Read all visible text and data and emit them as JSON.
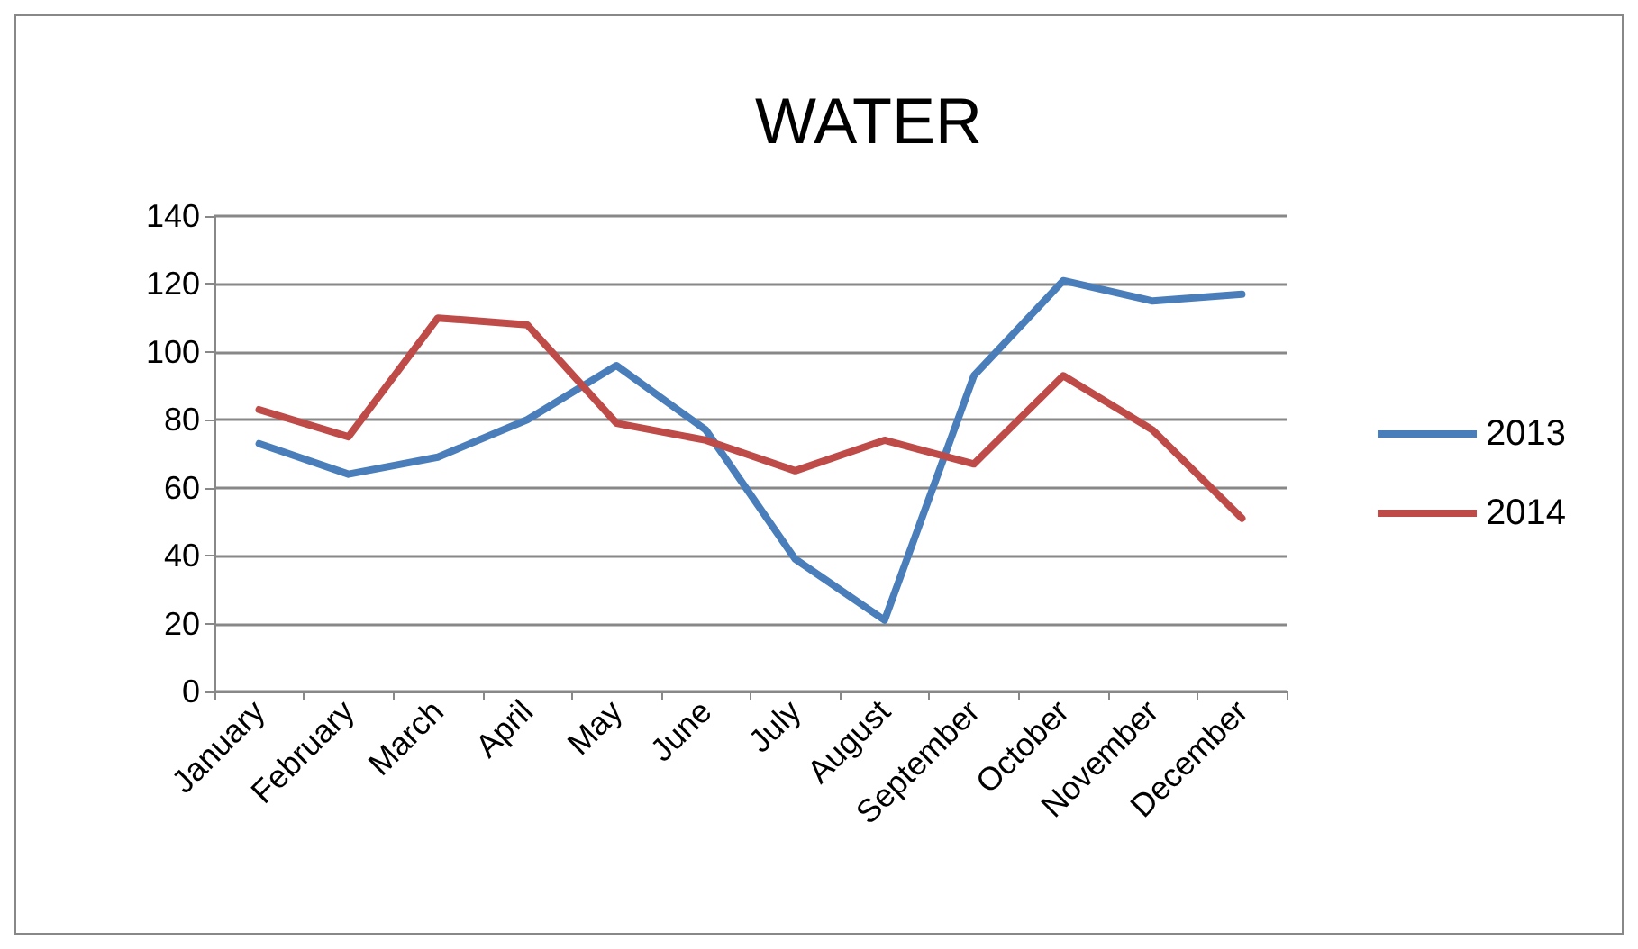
{
  "chart_data": {
    "type": "line",
    "title": "WATER",
    "categories": [
      "January",
      "February",
      "March",
      "April",
      "May",
      "June",
      "July",
      "August",
      "September",
      "October",
      "November",
      "December"
    ],
    "series": [
      {
        "name": "2013",
        "color": "#4a7ebb",
        "values": [
          73,
          64,
          69,
          80,
          96,
          77,
          39,
          21,
          93,
          121,
          115,
          117
        ]
      },
      {
        "name": "2014",
        "color": "#be4b48",
        "values": [
          83,
          75,
          110,
          108,
          79,
          74,
          65,
          74,
          67,
          93,
          77,
          51
        ]
      }
    ],
    "ylim": [
      0,
      140
    ],
    "yticks": [
      0,
      20,
      40,
      60,
      80,
      100,
      120,
      140
    ],
    "grid": "y",
    "legend": "right",
    "marker": "none",
    "line_style": "solid"
  }
}
